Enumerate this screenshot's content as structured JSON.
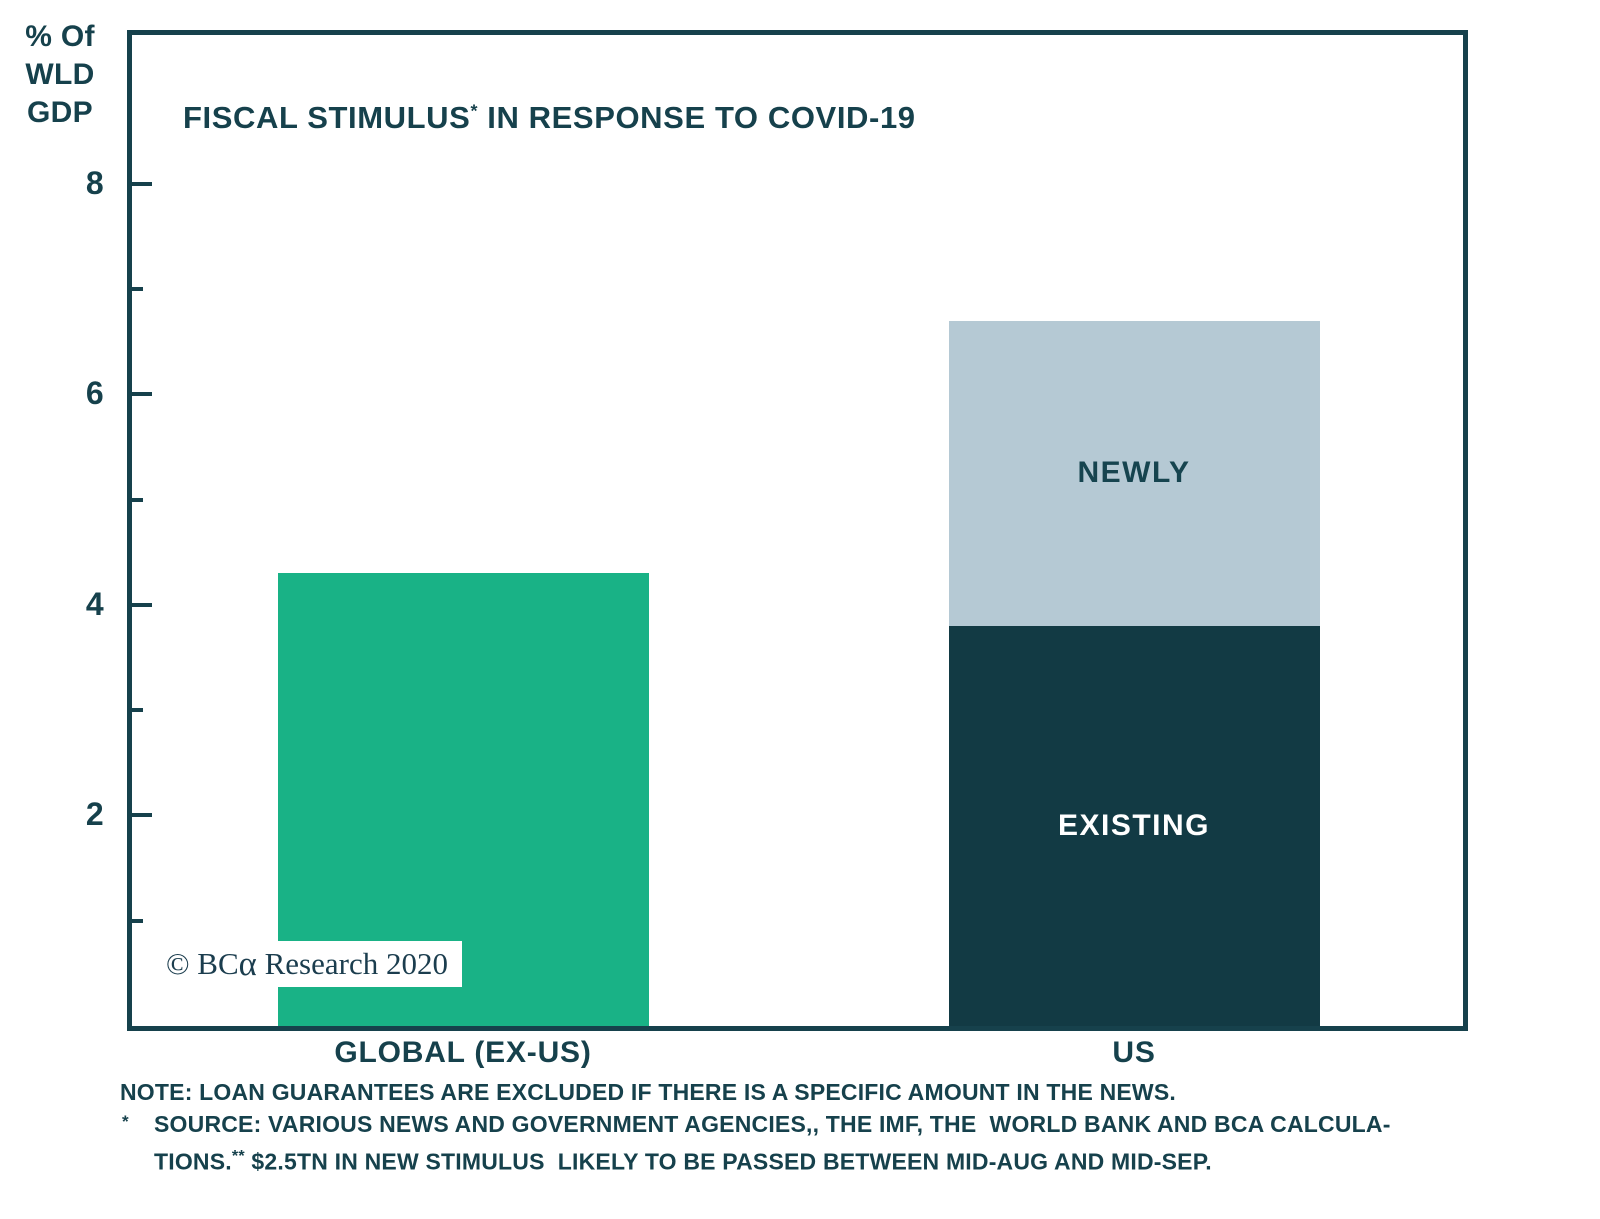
{
  "chart_data": {
    "type": "bar",
    "stacked": true,
    "title": "FISCAL STIMULUS* IN RESPONSE TO COVID-19",
    "title_parts": {
      "main": "FISCAL STIMULUS",
      "asterisk": "*",
      "rest": " IN RESPONSE TO COVID-19"
    },
    "y_axis_unit_lines": [
      "% Of",
      "WLD",
      "GDP"
    ],
    "ylim": [
      0,
      9.46
    ],
    "yticks_major": [
      2,
      4,
      6,
      8
    ],
    "yticks_minor": [
      1,
      3,
      5,
      7
    ],
    "grid": false,
    "legend_position": "labels-inside-bars",
    "categories": [
      "GLOBAL (EX-US)",
      "US"
    ],
    "bars": [
      {
        "category": "GLOBAL (EX-US)",
        "total": 4.3,
        "segments": [
          {
            "name": "",
            "value": 4.3,
            "color": "#19b286",
            "label_color": ""
          }
        ]
      },
      {
        "category": "US",
        "total": 6.7,
        "segments": [
          {
            "name": "EXISTING",
            "value": 3.8,
            "color": "#123a44",
            "label_color": "#ffffff"
          },
          {
            "name": "NEWLY",
            "value": 2.9,
            "color": "#b5c9d4",
            "label_color": "#16444f"
          }
        ]
      }
    ]
  },
  "copyright": {
    "prefix": "© BC",
    "alpha": "α",
    "suffix": " Research 2020"
  },
  "notes": {
    "line1": "NOTE: LOAN GUARANTEES ARE EXCLUDED IF THERE IS A SPECIFIC AMOUNT IN THE NEWS.",
    "line2_marker": "*",
    "line2": "SOURCE: VARIOUS NEWS AND GOVERNMENT AGENCIES,, THE IMF, THE  WORLD BANK AND BCA CALCULA-",
    "line3_prefix": "TIONS.",
    "line3_marker": "**",
    "line3_rest": " $2.5TN IN NEW STIMULUS  LIKELY TO BE PASSED BETWEEN MID-AUG AND MID-SEP."
  },
  "colors": {
    "text": "#16414c",
    "frame": "#16414c",
    "bar_green": "#19b286",
    "bar_dark": "#123a44",
    "bar_gray": "#b5c9d4",
    "background": "#ffffff"
  }
}
